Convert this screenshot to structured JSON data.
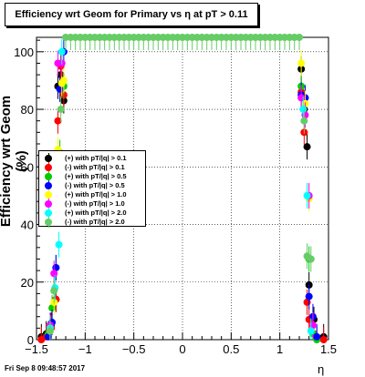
{
  "title": "Efficiency wrt Geom for Primary vs   η at pT > 0.11",
  "footer": "Fri Sep  8 09:48:57 2017",
  "chart_data": {
    "type": "scatter",
    "title": "Efficiency wrt Geom for Primary vs   η at pT > 0.11",
    "xlabel": "η",
    "ylabel": "Efficiency wrt Geom (%)",
    "xlim": [
      -1.5,
      1.5
    ],
    "ylim": [
      0,
      105
    ],
    "xticks": [
      "−1.5",
      "−1",
      "−0.5",
      "0",
      "0.5",
      "1",
      "1.5"
    ],
    "xtick_values": [
      -1.5,
      -1,
      -0.5,
      0,
      0.5,
      1,
      1.5
    ],
    "yticks": [
      "0",
      "20",
      "40",
      "60",
      "80",
      "100"
    ],
    "ytick_values": [
      0,
      20,
      40,
      60,
      80,
      100
    ],
    "grid": true,
    "legend_position": "left-center",
    "series": [
      {
        "name": "(+) with pT/|q| > 0.1",
        "color": "#000000",
        "x": [
          -1.45,
          -1.4,
          -1.35,
          -1.3,
          -1.28,
          -1.25,
          -1.22,
          1.22,
          1.25,
          1.28,
          1.3,
          1.35,
          1.45
        ],
        "y": [
          1,
          2,
          5,
          14,
          88,
          92,
          83,
          94,
          80,
          67,
          19,
          7,
          1
        ]
      },
      {
        "name": "(-) with pT/|q| > 0.1",
        "color": "#ff0000",
        "x": [
          -1.45,
          -1.4,
          -1.35,
          -1.3,
          -1.28,
          -1.25,
          -1.22,
          1.22,
          1.25,
          1.28,
          1.3,
          1.35,
          1.45
        ],
        "y": [
          0,
          1,
          4,
          14,
          76,
          95,
          85,
          86,
          72,
          13,
          7,
          2,
          0
        ]
      },
      {
        "name": "(+) with pT/|q| > 0.5",
        "color": "#00cc00",
        "x": [
          -1.38,
          -1.34,
          -1.3,
          -1.26,
          -1.22,
          1.22,
          1.26,
          1.3,
          1.34,
          1.38
        ],
        "y": [
          2,
          11,
          25,
          65,
          88,
          88,
          84,
          28,
          2,
          0
        ]
      },
      {
        "name": "(-) with pT/|q| > 0.5",
        "color": "#0000ff",
        "x": [
          -1.38,
          -1.34,
          -1.3,
          -1.26,
          -1.22,
          1.22,
          1.26,
          1.3,
          1.34,
          1.38
        ],
        "y": [
          1,
          6,
          25,
          87,
          100,
          85,
          84,
          15,
          8,
          1
        ]
      },
      {
        "name": "(+) with pT/|q| > 1.0",
        "color": "#ffff00",
        "x": [
          -1.36,
          -1.32,
          -1.28,
          -1.24,
          -1.22,
          1.22,
          1.26,
          1.3,
          1.34
        ],
        "y": [
          3,
          13,
          66,
          89,
          90,
          96,
          82,
          49,
          5
        ]
      },
      {
        "name": "(-) with pT/|q| > 1.0",
        "color": "#ff00ff",
        "x": [
          -1.36,
          -1.32,
          -1.28,
          -1.24,
          1.22,
          1.26,
          1.3,
          1.34
        ],
        "y": [
          5,
          23,
          96,
          96,
          84,
          78,
          50,
          5
        ]
      },
      {
        "name": "(+) with pT/|q| > 2.0",
        "color": "#00ffff",
        "x": [
          -1.36,
          -1.31,
          -1.27,
          -1.24,
          1.24,
          1.28,
          1.32
        ],
        "y": [
          4,
          18,
          33,
          100,
          80,
          50,
          3
        ]
      },
      {
        "name": "(-) with pT/|q| > 2.0",
        "color": "#66cc66",
        "x": [
          -1.36,
          -1.32,
          -1.28,
          -1.25,
          -1.2,
          -1.15,
          -1.1,
          -1.05,
          -1.0,
          -0.95,
          -0.9,
          -0.85,
          -0.8,
          -0.75,
          -0.7,
          -0.65,
          -0.6,
          -0.55,
          -0.5,
          -0.45,
          -0.4,
          -0.35,
          -0.3,
          -0.25,
          -0.2,
          -0.15,
          -0.1,
          -0.05,
          0,
          0.05,
          0.1,
          0.15,
          0.2,
          0.25,
          0.3,
          0.35,
          0.4,
          0.45,
          0.5,
          0.55,
          0.6,
          0.65,
          0.7,
          0.75,
          0.8,
          0.85,
          0.9,
          0.95,
          1.0,
          1.05,
          1.1,
          1.15,
          1.2,
          1.25,
          1.28,
          1.32
        ],
        "y": [
          3,
          17,
          49,
          80,
          105,
          105,
          105,
          105,
          105,
          105,
          105,
          105,
          105,
          105,
          105,
          105,
          105,
          105,
          105,
          105,
          105,
          105,
          105,
          105,
          105,
          105,
          105,
          105,
          105,
          105,
          105,
          105,
          105,
          105,
          105,
          105,
          105,
          105,
          105,
          105,
          105,
          105,
          105,
          105,
          105,
          105,
          105,
          105,
          105,
          105,
          105,
          105,
          105,
          76,
          29,
          28
        ]
      }
    ]
  }
}
